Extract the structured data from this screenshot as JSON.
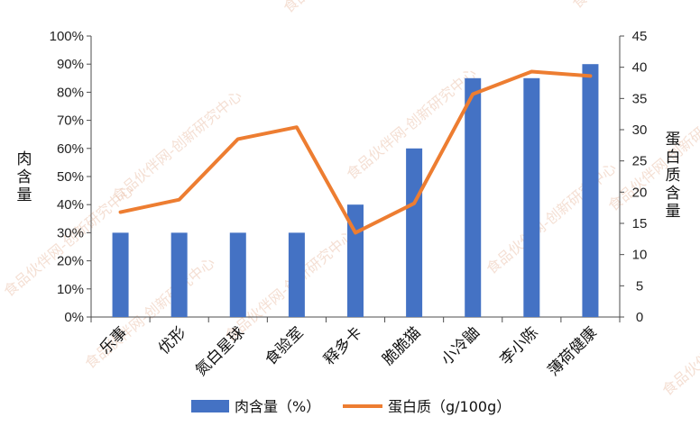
{
  "chart_data": {
    "type": "bar",
    "categories": [
      "乐事",
      "优形",
      "氮白星球",
      "食验室",
      "释多卡",
      "脆脆猫",
      "小冷鼬",
      "李小陈",
      "薄荷健康"
    ],
    "series": [
      {
        "name": "肉含量（%）",
        "type": "bar",
        "axis": "left",
        "color": "#4472C4",
        "values": [
          30,
          30,
          30,
          30,
          40,
          60,
          85,
          85,
          90
        ]
      },
      {
        "name": "蛋白质（g/100g）",
        "type": "line",
        "axis": "right",
        "color": "#ED7D31",
        "values": [
          16.8,
          18.8,
          28.5,
          30.4,
          13.5,
          18.2,
          35.7,
          39.3,
          38.6
        ]
      }
    ],
    "left_axis": {
      "label": "肉含量",
      "ylim": [
        0,
        100
      ],
      "ticks": [
        "0%",
        "10%",
        "20%",
        "30%",
        "40%",
        "50%",
        "60%",
        "70%",
        "80%",
        "90%",
        "100%"
      ]
    },
    "right_axis": {
      "label": "蛋白质含量",
      "ylim": [
        0,
        45
      ],
      "ticks": [
        "0",
        "5",
        "10",
        "15",
        "20",
        "25",
        "30",
        "35",
        "40",
        "45"
      ]
    },
    "legend_position": "bottom",
    "grid": false
  },
  "watermark": "食品伙伴网-创新研究中心"
}
